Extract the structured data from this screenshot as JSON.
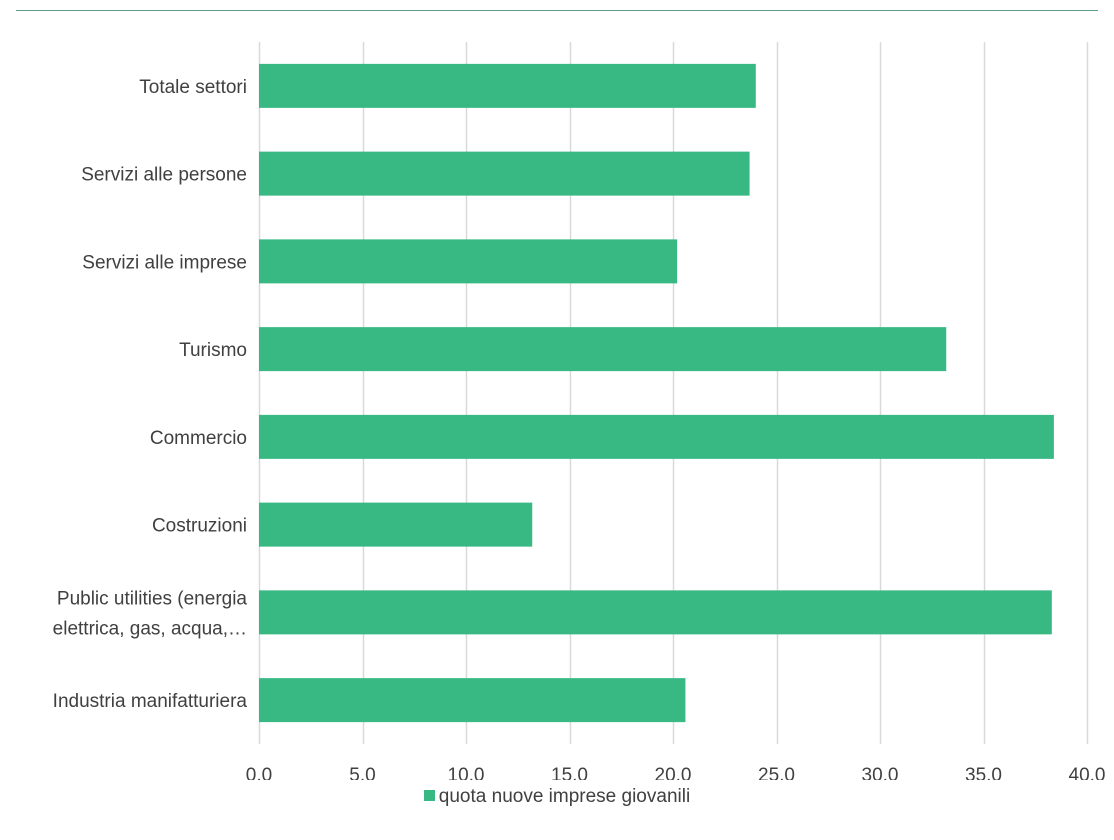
{
  "chart_data": {
    "type": "bar",
    "orientation": "horizontal",
    "categories": [
      "Totale settori",
      "Servizi alle persone",
      "Servizi alle imprese",
      "Turismo",
      "Commercio",
      "Costruzioni",
      "Public utilities (energia elettrica, gas, acqua,…",
      "Industria manifatturiera"
    ],
    "category_lines": [
      [
        "Totale settori"
      ],
      [
        "Servizi alle persone"
      ],
      [
        "Servizi alle imprese"
      ],
      [
        "Turismo"
      ],
      [
        "Commercio"
      ],
      [
        "Costruzioni"
      ],
      [
        "Public utilities (energia",
        "elettrica, gas, acqua,…"
      ],
      [
        "Industria manifatturiera"
      ]
    ],
    "series": [
      {
        "name": "quota nuove imprese giovanili",
        "values": [
          24.0,
          23.7,
          20.2,
          33.2,
          38.4,
          13.2,
          38.3,
          20.6
        ],
        "color": "#38b984"
      }
    ],
    "xlim": [
      0,
      40
    ],
    "xticks": [
      0,
      5,
      10,
      15,
      20,
      25,
      30,
      35,
      40
    ],
    "xtick_labels": [
      "0,0",
      "5,0",
      "10,0",
      "15,0",
      "20,0",
      "25,0",
      "30,0",
      "35,0",
      "40,0"
    ],
    "grid": "vertical",
    "gridline_color": "#d9d9d9",
    "legend_position": "bottom",
    "title": "",
    "xlabel": "",
    "ylabel": ""
  },
  "rule_color": "#5b9e86"
}
